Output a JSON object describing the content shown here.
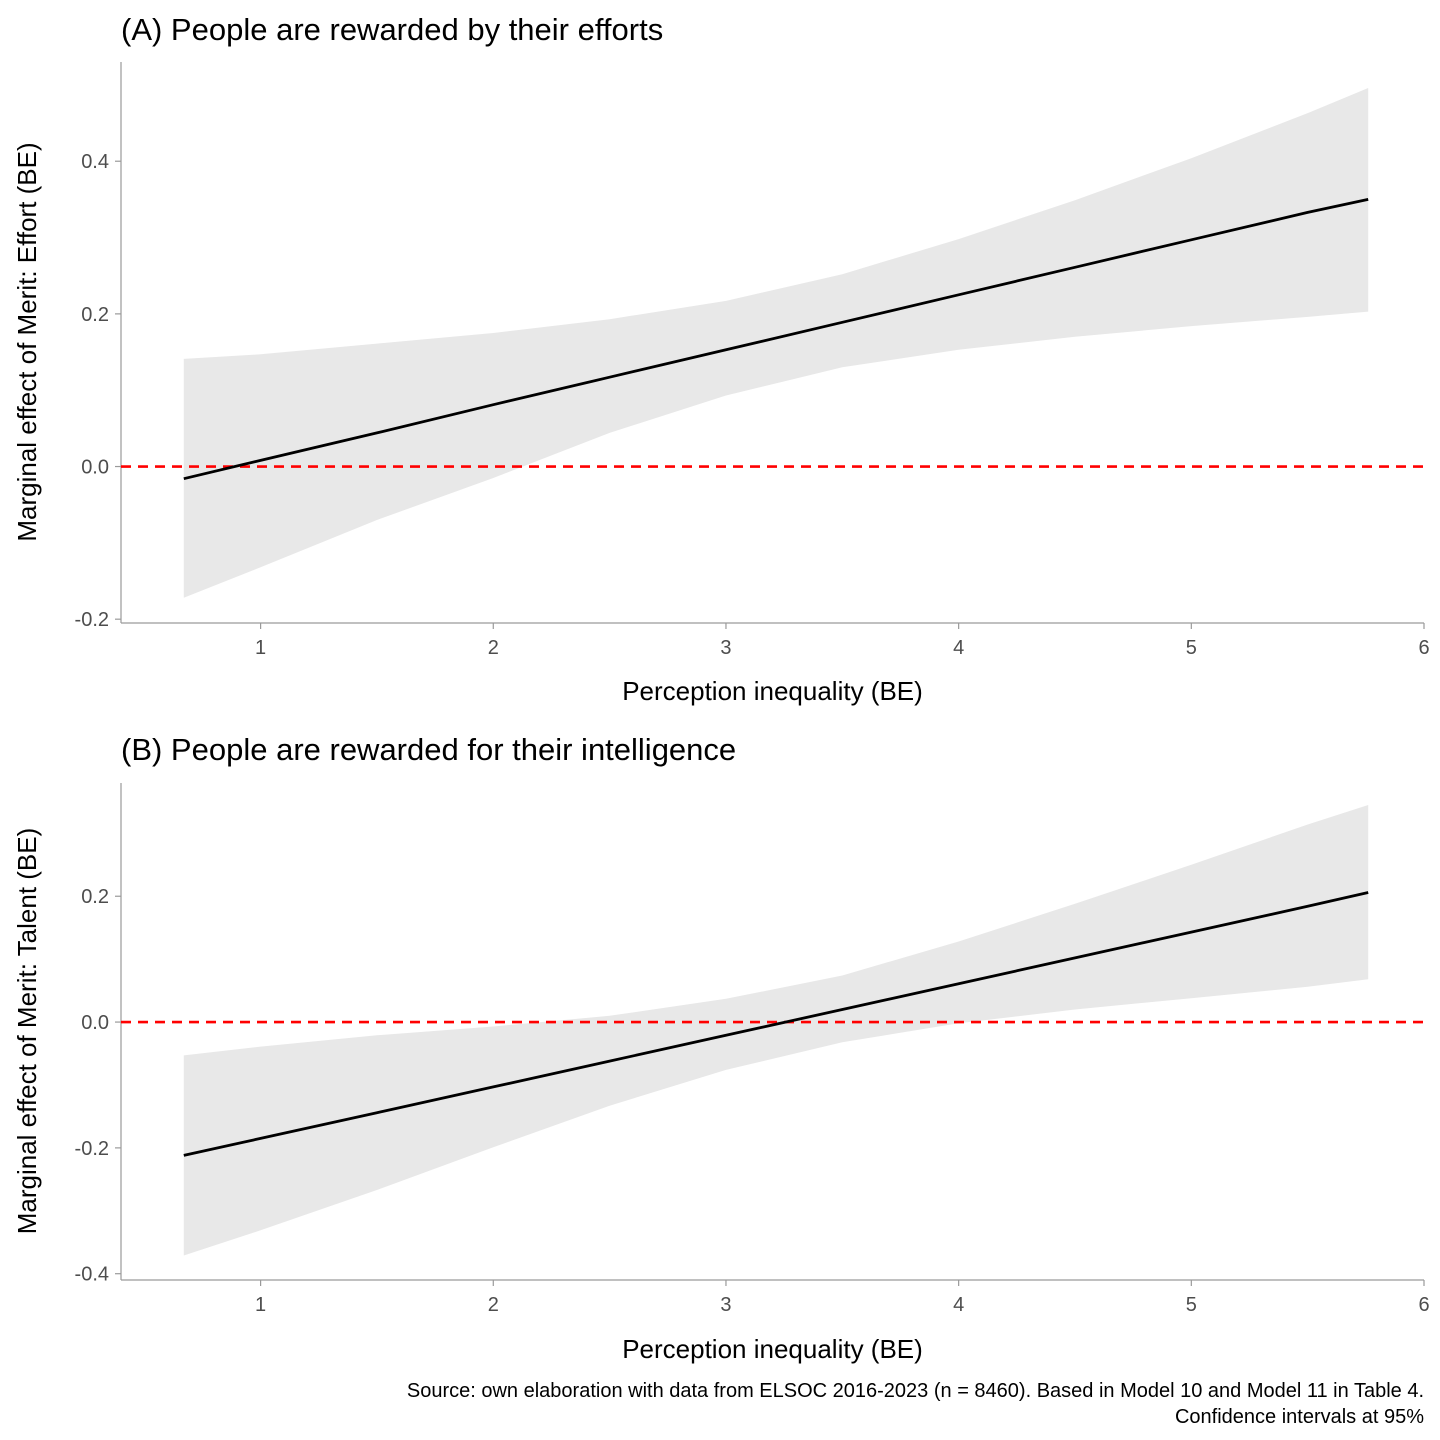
{
  "chart_data": [
    {
      "type": "line",
      "title": "(A) People are rewarded by their efforts",
      "xlabel": "Perception inequality (BE)",
      "ylabel": "Marginal effect of Merit: Effort (BE)",
      "xlim": [
        0.4,
        6.0
      ],
      "ylim": [
        -0.205,
        0.53
      ],
      "xticks": [
        1,
        2,
        3,
        4,
        5,
        6
      ],
      "xtick_labels": [
        "1",
        "2",
        "3",
        "4",
        "5",
        "6"
      ],
      "yticks": [
        -0.2,
        0.0,
        0.2,
        0.4
      ],
      "ytick_labels": [
        "-0.2",
        "0.0",
        "0.2",
        "0.4"
      ],
      "reference_line": {
        "y": 0.0,
        "color": "#ff0000",
        "style": "dashed"
      },
      "series": [
        {
          "x": [
            0.67,
            1.0,
            1.5,
            2.0,
            2.5,
            3.0,
            3.5,
            4.0,
            4.5,
            5.0,
            5.5,
            5.76
          ],
          "y": [
            -0.016,
            0.008,
            0.044,
            0.081,
            0.117,
            0.153,
            0.189,
            0.225,
            0.261,
            0.297,
            0.333,
            0.35
          ],
          "ci_lower": [
            -0.172,
            -0.132,
            -0.07,
            -0.015,
            0.044,
            0.093,
            0.13,
            0.153,
            0.17,
            0.184,
            0.196,
            0.203
          ],
          "ci_upper": [
            0.141,
            0.147,
            0.161,
            0.175,
            0.193,
            0.217,
            0.252,
            0.298,
            0.349,
            0.404,
            0.463,
            0.496
          ],
          "color": "#000000",
          "ci_color": "#e8e8e8"
        }
      ]
    },
    {
      "type": "line",
      "title": "(B) People are rewarded for their intelligence",
      "xlabel": "Perception inequality (BE)",
      "ylabel": "Marginal effect of Merit: Talent (BE)",
      "xlim": [
        0.4,
        6.0
      ],
      "ylim": [
        -0.41,
        0.38
      ],
      "xticks": [
        1,
        2,
        3,
        4,
        5,
        6
      ],
      "xtick_labels": [
        "1",
        "2",
        "3",
        "4",
        "5",
        "6"
      ],
      "yticks": [
        -0.4,
        -0.2,
        0.0,
        0.2
      ],
      "ytick_labels": [
        "-0.4",
        "-0.2",
        "0.0",
        "0.2"
      ],
      "reference_line": {
        "y": 0.0,
        "color": "#ff0000",
        "style": "dashed"
      },
      "series": [
        {
          "x": [
            0.67,
            1.0,
            1.5,
            2.0,
            2.5,
            3.0,
            3.5,
            4.0,
            4.5,
            5.0,
            5.5,
            5.76
          ],
          "y": [
            -0.212,
            -0.185,
            -0.144,
            -0.103,
            -0.062,
            -0.021,
            0.02,
            0.061,
            0.102,
            0.143,
            0.184,
            0.206
          ],
          "ci_lower": [
            -0.371,
            -0.331,
            -0.267,
            -0.199,
            -0.133,
            -0.076,
            -0.032,
            -0.002,
            0.02,
            0.038,
            0.056,
            0.068
          ],
          "ci_upper": [
            -0.053,
            -0.039,
            -0.021,
            -0.007,
            0.01,
            0.037,
            0.074,
            0.128,
            0.188,
            0.25,
            0.314,
            0.345
          ],
          "color": "#000000",
          "ci_color": "#e8e8e8"
        }
      ]
    }
  ],
  "caption": {
    "line1": "Source: own elaboration with data from ELSOC 2016-2023 (n = 8460). Based in Model 10 and Model 11 in Table 4.",
    "line2": "Confidence intervals at 95%"
  }
}
